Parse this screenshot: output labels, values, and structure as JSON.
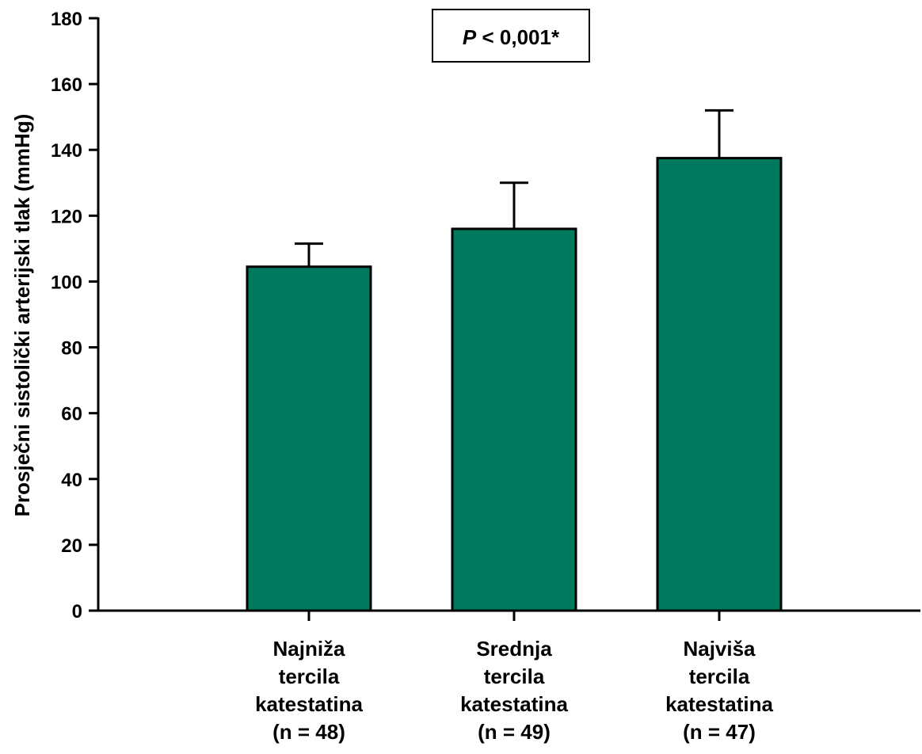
{
  "chart_data": {
    "type": "bar",
    "title": "",
    "xlabel": "",
    "ylabel": "Prosječni sistolički arterijski tlak (mmHg)",
    "ylim": [
      0,
      180
    ],
    "yticks": [
      0,
      20,
      40,
      60,
      80,
      100,
      120,
      140,
      160,
      180
    ],
    "grid": false,
    "legend": "none",
    "categories": [
      {
        "lines": [
          "Najniža",
          "tercila",
          "katestatina",
          "(n = 48)"
        ]
      },
      {
        "lines": [
          "Srednja",
          "tercila",
          "katestatina",
          "(n = 49)"
        ]
      },
      {
        "lines": [
          "Najviša",
          "tercila",
          "katestatina",
          "(n = 47)"
        ]
      }
    ],
    "values": [
      104.5,
      116,
      137.5
    ],
    "error_upper": [
      7,
      14,
      14.5
    ],
    "bar_color": "#007a5e",
    "annotation": {
      "p_label": "P",
      "p_rest": " < 0,001*"
    }
  }
}
